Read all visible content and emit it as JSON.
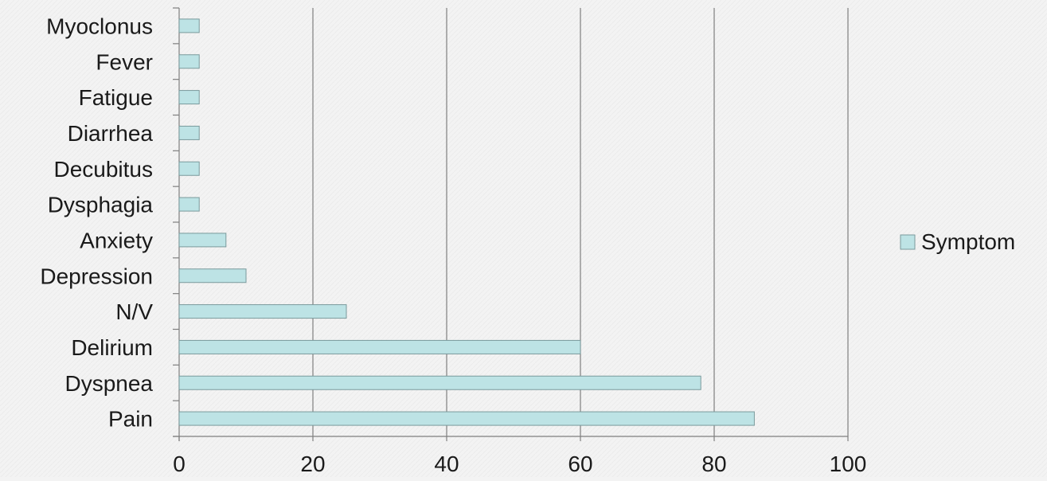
{
  "chart_data": {
    "type": "bar",
    "orientation": "horizontal",
    "categories": [
      "Pain",
      "Dyspnea",
      "Delirium",
      "N/V",
      "Depression",
      "Anxiety",
      "Dysphagia",
      "Decubitus",
      "Diarrhea",
      "Fatigue",
      "Fever",
      "Myoclonus"
    ],
    "series": [
      {
        "name": "Symptom",
        "values": [
          86,
          78,
          60,
          25,
          10,
          7,
          3,
          3,
          3,
          3,
          3,
          3
        ]
      }
    ],
    "xlim": [
      0,
      100
    ],
    "xticks": [
      "0",
      "20",
      "40",
      "60",
      "80",
      "100"
    ],
    "grid": "vertical",
    "legend": "right",
    "colors": {
      "bar_fill": "#bde3e5",
      "bar_stroke": "#7a9a9c",
      "grid": "#7f7f7f",
      "axis": "#7f7f7f",
      "background": "#f3f3f3"
    }
  }
}
